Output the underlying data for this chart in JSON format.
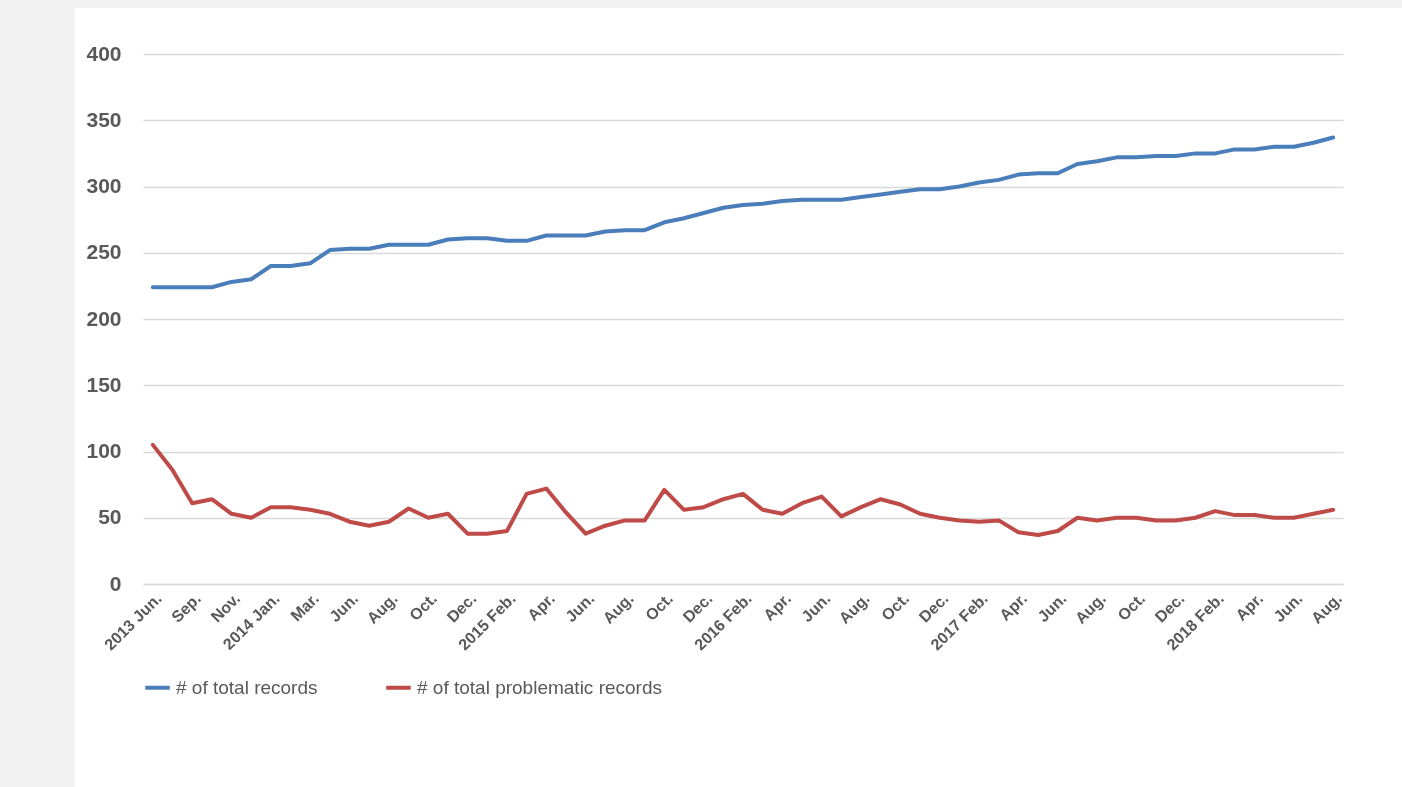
{
  "chart_data": {
    "type": "line",
    "categories": [
      "2013 Jun.",
      null,
      "Sep.",
      null,
      "Nov.",
      null,
      "2014 Jan.",
      null,
      "Mar.",
      null,
      "Jun.",
      null,
      "Aug.",
      null,
      "Oct.",
      null,
      "Dec.",
      null,
      "2015 Feb.",
      null,
      "Apr.",
      null,
      "Jun.",
      null,
      "Aug.",
      null,
      "Oct.",
      null,
      "Dec.",
      null,
      "2016 Feb.",
      null,
      "Apr.",
      null,
      "Jun.",
      null,
      "Aug.",
      null,
      "Oct.",
      null,
      "Dec.",
      null,
      "2017 Feb.",
      null,
      "Apr.",
      null,
      "Jun.",
      null,
      "Aug.",
      null,
      "Oct.",
      null,
      "Dec.",
      null,
      "2018 Feb.",
      null,
      "Apr.",
      null,
      "Jun.",
      null,
      "Aug."
    ],
    "series": [
      {
        "name": "# of total records",
        "color": "#4a7ebb",
        "values": [
          224,
          224,
          224,
          224,
          228,
          230,
          240,
          240,
          242,
          252,
          253,
          253,
          256,
          256,
          256,
          260,
          261,
          261,
          259,
          259,
          263,
          263,
          263,
          266,
          267,
          267,
          273,
          276,
          280,
          284,
          286,
          287,
          289,
          290,
          290,
          290,
          292,
          294,
          296,
          298,
          298,
          300,
          303,
          305,
          309,
          310,
          310,
          317,
          319,
          322,
          322,
          323,
          323,
          325,
          325,
          328,
          328,
          330,
          330,
          333,
          337
        ]
      },
      {
        "name": "# of total problematic records",
        "color": "#be4b48",
        "values": [
          105,
          86,
          61,
          64,
          53,
          50,
          58,
          58,
          56,
          53,
          47,
          44,
          47,
          57,
          50,
          53,
          38,
          38,
          40,
          68,
          72,
          54,
          38,
          44,
          48,
          48,
          71,
          56,
          58,
          64,
          68,
          56,
          53,
          61,
          66,
          51,
          58,
          64,
          60,
          53,
          50,
          48,
          47,
          48,
          39,
          37,
          40,
          50,
          48,
          50,
          50,
          48,
          48,
          50,
          55,
          52,
          52,
          50,
          50,
          53,
          56
        ]
      }
    ],
    "ylim": [
      0,
      400
    ],
    "yticks": [
      0,
      50,
      100,
      150,
      200,
      250,
      300,
      350,
      400
    ],
    "grid": "y",
    "legend": "bottom"
  }
}
